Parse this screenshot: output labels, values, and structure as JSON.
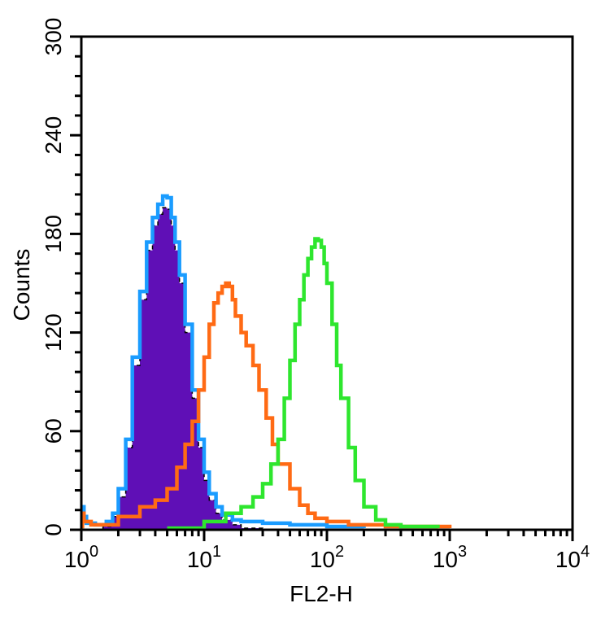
{
  "chart_data": {
    "type": "histogram",
    "xlabel": "FL2-H",
    "ylabel": "Counts",
    "x_scale": "log",
    "xlim": [
      1,
      10000
    ],
    "ylim": [
      0,
      300
    ],
    "x_ticks": [
      {
        "base": "10",
        "exp": "0",
        "value": 1
      },
      {
        "base": "10",
        "exp": "1",
        "value": 10
      },
      {
        "base": "10",
        "exp": "2",
        "value": 100
      },
      {
        "base": "10",
        "exp": "3",
        "value": 1000
      },
      {
        "base": "10",
        "exp": "4",
        "value": 10000
      }
    ],
    "y_ticks": [
      "0",
      "60",
      "120",
      "180",
      "240",
      "300"
    ],
    "series": [
      {
        "color": "#5f0fb6",
        "filled": true,
        "x": [
          1,
          1.5,
          1.8,
          2.0,
          2.3,
          2.6,
          3.0,
          3.4,
          3.8,
          4.2,
          4.6,
          5.0,
          5.4,
          5.8,
          6.3,
          7.0,
          8.0,
          9.0,
          10,
          11,
          12.5,
          14,
          17,
          20,
          30
        ],
        "y": [
          0,
          2,
          8,
          20,
          50,
          100,
          140,
          170,
          185,
          192,
          196,
          195,
          185,
          170,
          150,
          120,
          80,
          50,
          30,
          18,
          10,
          6,
          3,
          1,
          0
        ]
      },
      {
        "color": "#1a9cff",
        "filled": false,
        "x": [
          1,
          1.02,
          1.05,
          1.1,
          1.3,
          1.6,
          1.8,
          2.0,
          2.3,
          2.6,
          3.0,
          3.4,
          3.8,
          4.2,
          4.6,
          5.0,
          5.4,
          5.8,
          6.3,
          7.0,
          8.0,
          9.0,
          10,
          11,
          12.5,
          14,
          17,
          20,
          30,
          50,
          100,
          200
        ],
        "y": [
          2,
          14,
          8,
          4,
          3,
          5,
          10,
          25,
          55,
          105,
          145,
          175,
          190,
          198,
          203,
          202,
          190,
          175,
          155,
          125,
          85,
          55,
          35,
          22,
          14,
          9,
          6,
          5,
          4,
          3,
          2,
          1
        ]
      },
      {
        "color": "#ff6a14",
        "filled": false,
        "x": [
          1,
          1.02,
          1.05,
          1.2,
          2,
          3,
          4,
          5,
          6,
          7,
          8,
          9,
          10,
          11,
          12,
          13,
          14,
          15,
          16,
          17,
          18,
          20,
          22,
          25,
          28,
          32,
          36,
          40,
          50,
          60,
          70,
          80,
          100,
          150,
          300,
          1000
        ],
        "y": [
          2,
          10,
          5,
          3,
          8,
          14,
          18,
          25,
          38,
          52,
          66,
          85,
          105,
          125,
          138,
          144,
          148,
          150,
          148,
          140,
          130,
          120,
          112,
          100,
          85,
          68,
          52,
          40,
          25,
          15,
          10,
          7,
          5,
          3,
          2,
          1
        ]
      },
      {
        "color": "#2ee62e",
        "filled": false,
        "x": [
          5,
          10,
          15,
          20,
          25,
          30,
          35,
          40,
          45,
          50,
          55,
          60,
          65,
          70,
          75,
          80,
          85,
          90,
          95,
          100,
          110,
          120,
          130,
          150,
          170,
          200,
          250,
          300,
          400,
          800
        ],
        "y": [
          1,
          5,
          10,
          14,
          20,
          28,
          40,
          55,
          80,
          103,
          125,
          140,
          155,
          165,
          172,
          177,
          176,
          172,
          162,
          150,
          125,
          100,
          80,
          50,
          30,
          14,
          6,
          3,
          2,
          1
        ]
      }
    ]
  }
}
